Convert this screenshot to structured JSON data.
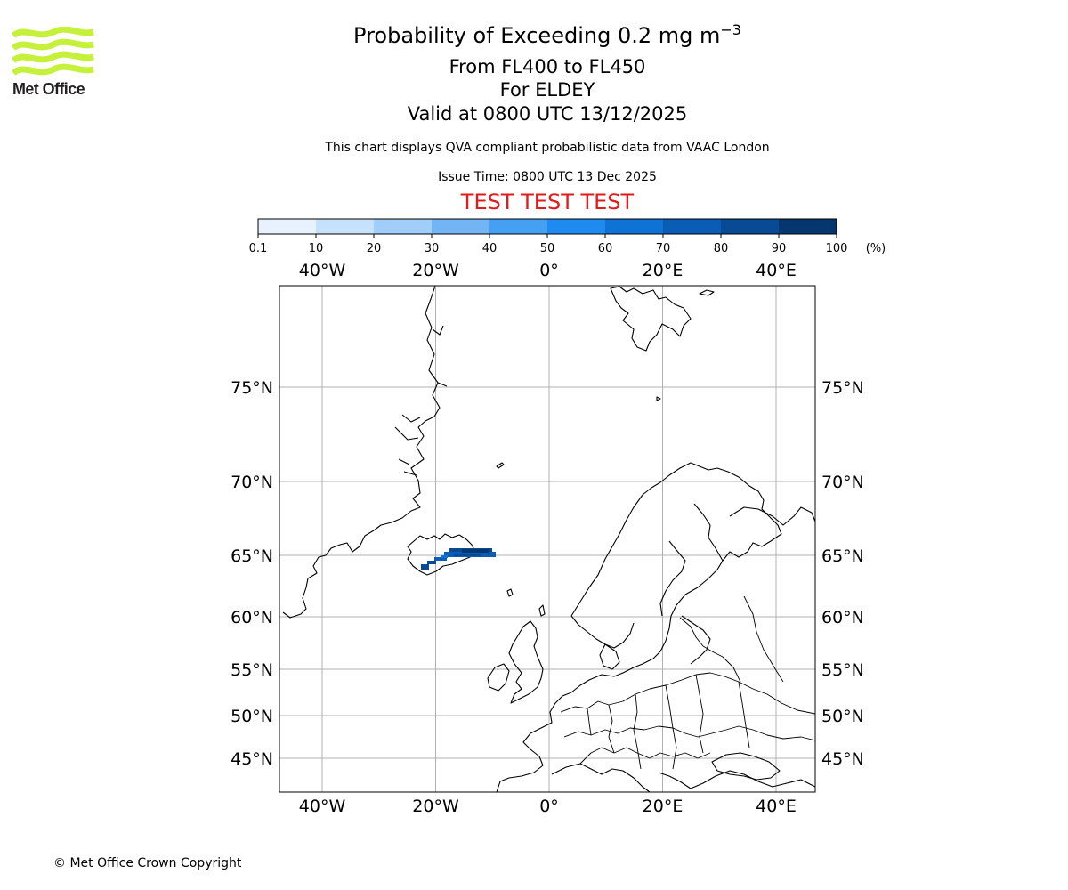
{
  "brand": {
    "logo_text": "Met Office",
    "logo_color": "#c6f13a"
  },
  "header": {
    "title": "Probability of Exceeding 0.2 mg m",
    "title_exponent": "−3",
    "subtitle_levels": "From FL400 to FL450",
    "subtitle_location": "For ELDEY",
    "subtitle_valid": "Valid at 0800 UTC 13/12/2025",
    "data_note": "This chart displays QVA compliant probabilistic data from VAAC London",
    "issue_time": "Issue Time: 0800 UTC 13 Dec 2025",
    "test_banner": "TEST TEST TEST",
    "test_banner_color": "#e31a1c"
  },
  "colorbar": {
    "ticks": [
      "0.1",
      "10",
      "20",
      "30",
      "40",
      "50",
      "60",
      "70",
      "80",
      "90",
      "100"
    ],
    "unit": "(%)",
    "colors": [
      "#e8f2fe",
      "#c6e1fb",
      "#a1cdf8",
      "#72b4f4",
      "#45a0f4",
      "#1f8bf0",
      "#0f73d6",
      "#0b5cb5",
      "#084a93",
      "#05366e"
    ]
  },
  "map": {
    "lon_labels": [
      "40°W",
      "20°W",
      "0°",
      "20°E",
      "40°E"
    ],
    "lat_labels": [
      "75°N",
      "70°N",
      "65°N",
      "60°N",
      "55°N",
      "50°N",
      "45°N"
    ],
    "lon_values": [
      -40,
      -20,
      0,
      20,
      40
    ],
    "lat_values": [
      75,
      70,
      65,
      60,
      55,
      50,
      45
    ],
    "plume_probability_band": "60-100"
  },
  "footer": {
    "copyright": "© Met Office Crown Copyright"
  }
}
